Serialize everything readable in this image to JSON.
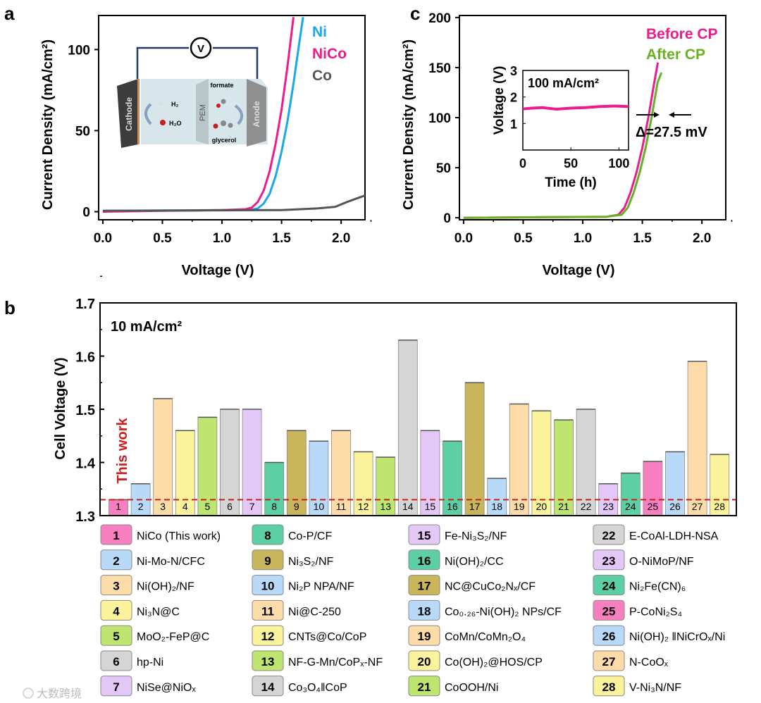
{
  "colors": {
    "pink": "#f77fbf",
    "blue": "#b9d9f8",
    "orange": "#fddcaa",
    "yellow": "#fbf29c",
    "green": "#bde56f",
    "grey": "#d5d5d5",
    "purple": "#e3c7f6",
    "teal": "#5ccfa4",
    "olive": "#c9b55b",
    "ni_line": "#1aa7ec",
    "nico_line": "#ec1c8c",
    "co_line": "#555555",
    "after_line": "#6ab023",
    "ref_line": "#cc1f1f"
  },
  "watermark": "大数跨境",
  "chart_data": [
    {
      "panel": "a",
      "type": "line",
      "xlabel": "Voltage (V)",
      "ylabel": "Current Density (mA/cm²)",
      "xlim": [
        -0.035,
        2.2
      ],
      "ylim": [
        -5,
        121
      ],
      "xticks": [
        "0.0",
        "0.5",
        "1.0",
        "1.5",
        "2.0"
      ],
      "xtick_values": [
        0,
        0.5,
        1.0,
        1.5,
        2.0
      ],
      "yticks": [
        "0",
        "50",
        "100"
      ],
      "ytick_values": [
        0,
        50,
        100
      ],
      "legend": "top-right",
      "series": [
        {
          "name": "Ni",
          "color_key": "ni_line",
          "points": [
            [
              0,
              0.5
            ],
            [
              1.0,
              1
            ],
            [
              1.25,
              1.3
            ],
            [
              1.3,
              2
            ],
            [
              1.35,
              5
            ],
            [
              1.4,
              11
            ],
            [
              1.45,
              22
            ],
            [
              1.5,
              37
            ],
            [
              1.55,
              56
            ],
            [
              1.6,
              79
            ],
            [
              1.65,
              105
            ],
            [
              1.68,
              120
            ]
          ]
        },
        {
          "name": "NiCo",
          "color_key": "nico_line",
          "points": [
            [
              0,
              0
            ],
            [
              0.5,
              0.5
            ],
            [
              1.0,
              1
            ],
            [
              1.2,
              1.5
            ],
            [
              1.25,
              2.5
            ],
            [
              1.3,
              6
            ],
            [
              1.35,
              13
            ],
            [
              1.4,
              25
            ],
            [
              1.45,
              42
            ],
            [
              1.5,
              63
            ],
            [
              1.55,
              90
            ],
            [
              1.6,
              120
            ]
          ]
        },
        {
          "name": "Co",
          "color_key": "co_line",
          "points": [
            [
              0,
              0.5
            ],
            [
              1.5,
              1
            ],
            [
              1.8,
              2
            ],
            [
              1.95,
              3
            ],
            [
              2.05,
              6
            ],
            [
              2.2,
              10
            ]
          ]
        }
      ],
      "inset_labels": {
        "voltmeter": "V",
        "cathode": "Cathode",
        "h2": "H₂",
        "h2o": "H₂O",
        "pem": "PEM",
        "formate": "formate",
        "glycerol": "glycerol",
        "anode": "Anode"
      }
    },
    {
      "panel": "c",
      "type": "line",
      "xlabel": "Voltage (V)",
      "ylabel": "Current Density (mA/cm²)",
      "xlim": [
        -0.035,
        2.2
      ],
      "ylim": [
        -2,
        202
      ],
      "xticks": [
        "0.0",
        "0.5",
        "1.0",
        "1.5",
        "2.0"
      ],
      "xtick_values": [
        0,
        0.5,
        1.0,
        1.5,
        2.0
      ],
      "yticks": [
        "0",
        "50",
        "100",
        "150",
        "200"
      ],
      "ytick_values": [
        0,
        50,
        100,
        150,
        200
      ],
      "legend": "top-right",
      "annotation": "Δ=27.5 mV",
      "series": [
        {
          "name": "Before CP",
          "color_key": "nico_line",
          "points": [
            [
              0,
              0
            ],
            [
              1.2,
              1
            ],
            [
              1.3,
              3
            ],
            [
              1.35,
              10
            ],
            [
              1.4,
              25
            ],
            [
              1.45,
              45
            ],
            [
              1.5,
              70
            ],
            [
              1.55,
              100
            ],
            [
              1.6,
              135
            ],
            [
              1.63,
              155
            ]
          ]
        },
        {
          "name": "After CP",
          "color_key": "after_line",
          "points": [
            [
              0,
              0
            ],
            [
              1.2,
              1
            ],
            [
              1.3275,
              3
            ],
            [
              1.3775,
              10
            ],
            [
              1.4275,
              25
            ],
            [
              1.4775,
              45
            ],
            [
              1.5275,
              70
            ],
            [
              1.5775,
              100
            ],
            [
              1.6275,
              135
            ],
            [
              1.66,
              145
            ]
          ]
        }
      ],
      "inset": {
        "type": "line",
        "title": "100 mA/cm²",
        "xlabel": "Time (h)",
        "ylabel": "Voltage (V)",
        "xlim": [
          0,
          110
        ],
        "ylim": [
          0,
          3
        ],
        "xticks": [
          "0",
          "50",
          "100"
        ],
        "xtick_values": [
          0,
          50,
          100
        ],
        "yticks": [
          "1",
          "2",
          "3"
        ],
        "ytick_values": [
          1,
          2,
          3
        ],
        "points": [
          [
            0,
            1.55
          ],
          [
            10,
            1.58
          ],
          [
            20,
            1.6
          ],
          [
            35,
            1.54
          ],
          [
            50,
            1.58
          ],
          [
            65,
            1.6
          ],
          [
            80,
            1.64
          ],
          [
            95,
            1.66
          ],
          [
            110,
            1.64
          ]
        ]
      }
    },
    {
      "panel": "b",
      "type": "bar",
      "title": "10 mA/cm²",
      "ylabel": "Cell Voltage (V)",
      "ylim": [
        1.3,
        1.7
      ],
      "yticks": [
        "1.3",
        "1.4",
        "1.5",
        "1.6",
        "1.7"
      ],
      "ytick_values": [
        1.3,
        1.4,
        1.5,
        1.6,
        1.7
      ],
      "reference_line": {
        "value": 1.33,
        "label": "This work"
      },
      "categories": [
        "1",
        "2",
        "3",
        "4",
        "5",
        "6",
        "7",
        "8",
        "9",
        "10",
        "11",
        "12",
        "13",
        "14",
        "15",
        "16",
        "17",
        "18",
        "19",
        "20",
        "21",
        "22",
        "23",
        "24",
        "25",
        "26",
        "27",
        "28"
      ],
      "values": [
        1.33,
        1.36,
        1.52,
        1.46,
        1.485,
        1.5,
        1.5,
        1.4,
        1.46,
        1.44,
        1.46,
        1.42,
        1.41,
        1.63,
        1.46,
        1.44,
        1.55,
        1.37,
        1.51,
        1.497,
        1.48,
        1.5,
        1.36,
        1.38,
        1.402,
        1.42,
        1.59,
        1.415
      ],
      "color_keys": [
        "pink",
        "blue",
        "orange",
        "yellow",
        "green",
        "grey",
        "purple",
        "teal",
        "olive",
        "blue",
        "orange",
        "yellow",
        "green",
        "grey",
        "purple",
        "teal",
        "olive",
        "blue",
        "orange",
        "yellow",
        "green",
        "grey",
        "purple",
        "teal",
        "pink",
        "blue",
        "orange",
        "yellow"
      ],
      "legend": [
        {
          "num": "1",
          "label": "NiCo (This work)"
        },
        {
          "num": "2",
          "label": "Ni-Mo-N/CFC"
        },
        {
          "num": "3",
          "label": "Ni(OH)₂/NF"
        },
        {
          "num": "4",
          "label": "Ni₃N@C"
        },
        {
          "num": "5",
          "label": "MoO₂-FeP@C"
        },
        {
          "num": "6",
          "label": "hp-Ni"
        },
        {
          "num": "7",
          "label": "NiSe@NiOₓ"
        },
        {
          "num": "8",
          "label": "Co-P/CF"
        },
        {
          "num": "9",
          "label": "Ni₃S₂/NF"
        },
        {
          "num": "10",
          "label": "Ni₂P NPA/NF"
        },
        {
          "num": "11",
          "label": "Ni@C-250"
        },
        {
          "num": "12",
          "label": "CNTs@Co/CoP"
        },
        {
          "num": "13",
          "label": "NF-G-Mn/CoPₓ-NF"
        },
        {
          "num": "14",
          "label": "Co₃O₄ǁCoP"
        },
        {
          "num": "15",
          "label": "Fe-Ni₃S₂/NF"
        },
        {
          "num": "16",
          "label": "Ni(OH)₂/CC"
        },
        {
          "num": "17",
          "label": "NC@CuCo₂Nₓ/CF"
        },
        {
          "num": "18",
          "label": "Co₀.₂₆-Ni(OH)₂ NPs/CF"
        },
        {
          "num": "19",
          "label": "CoMn/CoMn₂O₄"
        },
        {
          "num": "20",
          "label": "Co(OH)₂@HOS/CP"
        },
        {
          "num": "21",
          "label": "CoOOH/Ni"
        },
        {
          "num": "22",
          "label": "E-CoAl-LDH-NSA"
        },
        {
          "num": "23",
          "label": "O-NiMoP/NF"
        },
        {
          "num": "24",
          "label": "Ni₂Fe(CN)₆"
        },
        {
          "num": "25",
          "label": "P-CoNi₂S₄"
        },
        {
          "num": "26",
          "label": "Ni(OH)₂ ǁNiCrOₓ/Ni"
        },
        {
          "num": "27",
          "label": "N-CoOₓ"
        },
        {
          "num": "28",
          "label": "V-Ni₃N/NF"
        }
      ]
    }
  ],
  "panel_labels": {
    "a": "a",
    "b": "b",
    "c": "c"
  }
}
